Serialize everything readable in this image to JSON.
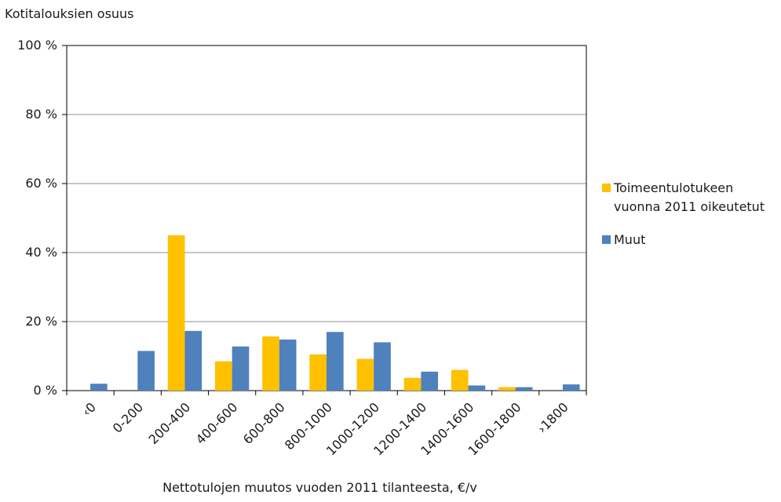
{
  "chart_data": {
    "type": "bar",
    "ylabel": "Kotitalouksien osuus",
    "xlabel": "Nettotulojen muutos vuoden 2011  tilanteesta, €/v",
    "categories": [
      "‹0",
      "0-200",
      "200-400",
      "400-600",
      "600-800",
      "800-1000",
      "1000-1200",
      "1200-1400",
      "1400-1600",
      "1600-1800",
      "›1800"
    ],
    "series": [
      {
        "name": "Toimeentulotukeen vuonna 2011 oikeutetut",
        "color": "#ffc000",
        "values": [
          0,
          0,
          45,
          8.5,
          15.7,
          10.5,
          9.2,
          3.7,
          6,
          1,
          0
        ]
      },
      {
        "name": "Muut",
        "color": "#4f81bd",
        "values": [
          2,
          11.5,
          17.3,
          12.8,
          14.8,
          17,
          14,
          5.5,
          1.5,
          1,
          1.8
        ]
      }
    ],
    "ylim": [
      0,
      100
    ],
    "yticks": [
      "0 %",
      "20 %",
      "40 %",
      "60 %",
      "80 %",
      "100 %"
    ],
    "grid": true,
    "legend": "right"
  }
}
